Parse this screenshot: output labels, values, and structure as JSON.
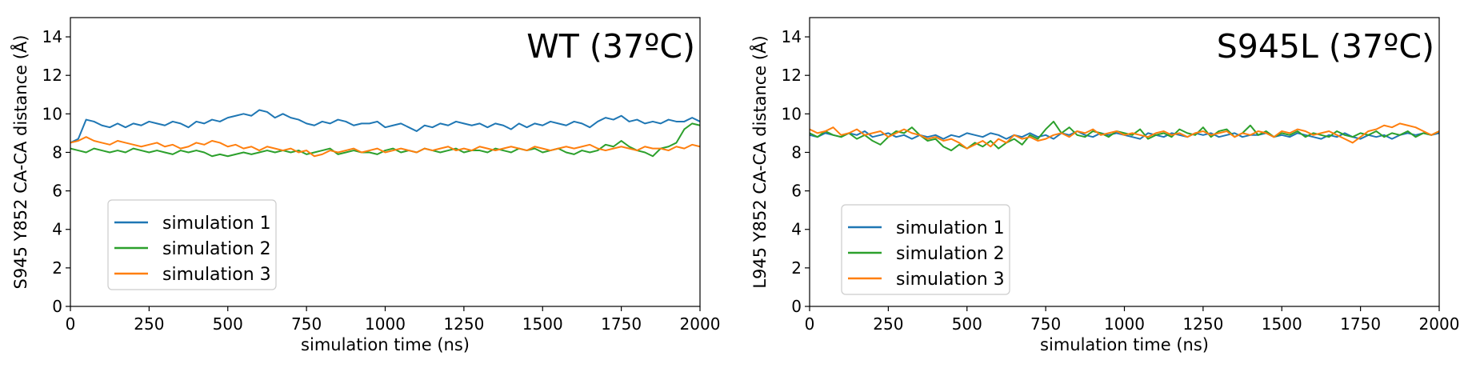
{
  "chart_data": [
    {
      "type": "line",
      "title": "WT (37ºC)",
      "xlabel": "simulation time (ns)",
      "ylabel": "S945 Y852 CA-CA distance (Å)",
      "xlim": [
        0,
        2000
      ],
      "ylim": [
        0,
        15
      ],
      "x_ticks": [
        "0",
        "250",
        "500",
        "750",
        "1000",
        "1250",
        "1500",
        "1750",
        "2000"
      ],
      "y_ticks": [
        "0",
        "2",
        "4",
        "6",
        "8",
        "10",
        "12",
        "14"
      ],
      "grid": false,
      "legend_position": "lower-left",
      "series": [
        {
          "name": "simulation 1",
          "color": "#1f77b4",
          "x": [
            0,
            25,
            50,
            75,
            100,
            125,
            150,
            175,
            200,
            225,
            250,
            275,
            300,
            325,
            350,
            375,
            400,
            425,
            450,
            475,
            500,
            525,
            550,
            575,
            600,
            625,
            650,
            675,
            700,
            725,
            750,
            775,
            800,
            825,
            850,
            875,
            900,
            925,
            950,
            975,
            1000,
            1025,
            1050,
            1075,
            1100,
            1125,
            1150,
            1175,
            1200,
            1225,
            1250,
            1275,
            1300,
            1325,
            1350,
            1375,
            1400,
            1425,
            1450,
            1475,
            1500,
            1525,
            1550,
            1575,
            1600,
            1625,
            1650,
            1675,
            1700,
            1725,
            1750,
            1775,
            1800,
            1825,
            1850,
            1875,
            1900,
            1925,
            1950,
            1975,
            2000
          ],
          "values": [
            8.5,
            8.7,
            9.7,
            9.6,
            9.4,
            9.3,
            9.5,
            9.3,
            9.5,
            9.4,
            9.6,
            9.5,
            9.4,
            9.6,
            9.5,
            9.3,
            9.6,
            9.5,
            9.7,
            9.6,
            9.8,
            9.9,
            10.0,
            9.9,
            10.2,
            10.1,
            9.8,
            10.0,
            9.8,
            9.7,
            9.5,
            9.4,
            9.6,
            9.5,
            9.7,
            9.6,
            9.4,
            9.5,
            9.5,
            9.6,
            9.3,
            9.4,
            9.5,
            9.3,
            9.1,
            9.4,
            9.3,
            9.5,
            9.4,
            9.6,
            9.5,
            9.4,
            9.5,
            9.3,
            9.5,
            9.4,
            9.2,
            9.5,
            9.3,
            9.5,
            9.4,
            9.6,
            9.5,
            9.4,
            9.6,
            9.5,
            9.3,
            9.6,
            9.8,
            9.7,
            9.9,
            9.6,
            9.7,
            9.5,
            9.6,
            9.5,
            9.7,
            9.6,
            9.6,
            9.8,
            9.6
          ]
        },
        {
          "name": "simulation 2",
          "color": "#2ca02c",
          "x": [
            0,
            25,
            50,
            75,
            100,
            125,
            150,
            175,
            200,
            225,
            250,
            275,
            300,
            325,
            350,
            375,
            400,
            425,
            450,
            475,
            500,
            525,
            550,
            575,
            600,
            625,
            650,
            675,
            700,
            725,
            750,
            775,
            800,
            825,
            850,
            875,
            900,
            925,
            950,
            975,
            1000,
            1025,
            1050,
            1075,
            1100,
            1125,
            1150,
            1175,
            1200,
            1225,
            1250,
            1275,
            1300,
            1325,
            1350,
            1375,
            1400,
            1425,
            1450,
            1475,
            1500,
            1525,
            1550,
            1575,
            1600,
            1625,
            1650,
            1675,
            1700,
            1725,
            1750,
            1775,
            1800,
            1825,
            1850,
            1875,
            1900,
            1925,
            1950,
            1975,
            2000
          ],
          "values": [
            8.2,
            8.1,
            8.0,
            8.2,
            8.1,
            8.0,
            8.1,
            8.0,
            8.2,
            8.1,
            8.0,
            8.1,
            8.0,
            7.9,
            8.1,
            8.0,
            8.1,
            8.0,
            7.8,
            7.9,
            7.8,
            7.9,
            8.0,
            7.9,
            8.0,
            8.1,
            8.0,
            8.1,
            8.0,
            8.1,
            7.9,
            8.0,
            8.1,
            8.2,
            7.9,
            8.0,
            8.1,
            8.0,
            8.0,
            7.9,
            8.1,
            8.2,
            8.0,
            8.1,
            8.0,
            8.2,
            8.1,
            8.0,
            8.1,
            8.2,
            8.0,
            8.1,
            8.1,
            8.0,
            8.2,
            8.1,
            8.0,
            8.2,
            8.1,
            8.2,
            8.0,
            8.1,
            8.2,
            8.0,
            7.9,
            8.1,
            8.0,
            8.1,
            8.4,
            8.3,
            8.6,
            8.3,
            8.1,
            8.0,
            7.8,
            8.2,
            8.3,
            8.5,
            9.2,
            9.5,
            9.4
          ]
        },
        {
          "name": "simulation 3",
          "color": "#ff7f0e",
          "x": [
            0,
            25,
            50,
            75,
            100,
            125,
            150,
            175,
            200,
            225,
            250,
            275,
            300,
            325,
            350,
            375,
            400,
            425,
            450,
            475,
            500,
            525,
            550,
            575,
            600,
            625,
            650,
            675,
            700,
            725,
            750,
            775,
            800,
            825,
            850,
            875,
            900,
            925,
            950,
            975,
            1000,
            1025,
            1050,
            1075,
            1100,
            1125,
            1150,
            1175,
            1200,
            1225,
            1250,
            1275,
            1300,
            1325,
            1350,
            1375,
            1400,
            1425,
            1450,
            1475,
            1500,
            1525,
            1550,
            1575,
            1600,
            1625,
            1650,
            1675,
            1700,
            1725,
            1750,
            1775,
            1800,
            1825,
            1850,
            1875,
            1900,
            1925,
            1950,
            1975,
            2000
          ],
          "values": [
            8.5,
            8.6,
            8.8,
            8.6,
            8.5,
            8.4,
            8.6,
            8.5,
            8.4,
            8.3,
            8.4,
            8.5,
            8.3,
            8.4,
            8.2,
            8.3,
            8.5,
            8.4,
            8.6,
            8.5,
            8.3,
            8.4,
            8.2,
            8.3,
            8.1,
            8.3,
            8.2,
            8.1,
            8.2,
            8.0,
            8.1,
            7.8,
            7.9,
            8.1,
            8.0,
            8.1,
            8.2,
            8.0,
            8.1,
            8.2,
            8.0,
            8.1,
            8.2,
            8.1,
            8.0,
            8.2,
            8.1,
            8.2,
            8.3,
            8.1,
            8.2,
            8.1,
            8.3,
            8.2,
            8.1,
            8.2,
            8.3,
            8.2,
            8.1,
            8.3,
            8.2,
            8.1,
            8.2,
            8.3,
            8.2,
            8.3,
            8.4,
            8.2,
            8.1,
            8.2,
            8.3,
            8.2,
            8.1,
            8.3,
            8.2,
            8.2,
            8.1,
            8.3,
            8.2,
            8.4,
            8.3
          ]
        }
      ]
    },
    {
      "type": "line",
      "title": "S945L (37ºC)",
      "xlabel": "simulation time (ns)",
      "ylabel": "L945 Y852 CA-CA distance (Å)",
      "xlim": [
        0,
        2000
      ],
      "ylim": [
        0,
        15
      ],
      "x_ticks": [
        "0",
        "250",
        "500",
        "750",
        "1000",
        "1250",
        "1500",
        "1750",
        "2000"
      ],
      "y_ticks": [
        "0",
        "2",
        "4",
        "6",
        "8",
        "10",
        "12",
        "14"
      ],
      "grid": false,
      "legend_position": "lower-left",
      "series": [
        {
          "name": "simulation 1",
          "color": "#1f77b4",
          "x": [
            0,
            25,
            50,
            75,
            100,
            125,
            150,
            175,
            200,
            225,
            250,
            275,
            300,
            325,
            350,
            375,
            400,
            425,
            450,
            475,
            500,
            525,
            550,
            575,
            600,
            625,
            650,
            675,
            700,
            725,
            750,
            775,
            800,
            825,
            850,
            875,
            900,
            925,
            950,
            975,
            1000,
            1025,
            1050,
            1075,
            1100,
            1125,
            1150,
            1175,
            1200,
            1225,
            1250,
            1275,
            1300,
            1325,
            1350,
            1375,
            1400,
            1425,
            1450,
            1475,
            1500,
            1525,
            1550,
            1575,
            1600,
            1625,
            1650,
            1675,
            1700,
            1725,
            1750,
            1775,
            1800,
            1825,
            1850,
            1875,
            1900,
            1925,
            1950,
            1975,
            2000
          ],
          "values": [
            8.9,
            8.8,
            9.0,
            8.9,
            8.8,
            9.0,
            8.9,
            9.1,
            8.8,
            8.9,
            9.0,
            8.8,
            8.9,
            8.7,
            8.9,
            8.8,
            8.9,
            8.7,
            8.9,
            8.8,
            9.0,
            8.9,
            8.8,
            9.0,
            8.9,
            8.7,
            8.9,
            8.8,
            9.0,
            8.8,
            8.9,
            8.7,
            9.0,
            8.9,
            9.1,
            8.9,
            8.8,
            9.0,
            8.9,
            9.0,
            8.9,
            8.8,
            8.7,
            9.0,
            8.9,
            8.8,
            9.0,
            8.9,
            8.8,
            9.0,
            8.9,
            9.0,
            8.8,
            8.9,
            9.0,
            8.8,
            8.9,
            8.9,
            9.0,
            8.8,
            8.9,
            8.8,
            9.0,
            8.9,
            8.8,
            8.7,
            8.9,
            8.8,
            9.0,
            8.8,
            8.7,
            8.9,
            8.8,
            8.9,
            8.7,
            8.9,
            9.0,
            8.9,
            9.0,
            8.9,
            9.0
          ]
        },
        {
          "name": "simulation 2",
          "color": "#2ca02c",
          "x": [
            0,
            25,
            50,
            75,
            100,
            125,
            150,
            175,
            200,
            225,
            250,
            275,
            300,
            325,
            350,
            375,
            400,
            425,
            450,
            475,
            500,
            525,
            550,
            575,
            600,
            625,
            650,
            675,
            700,
            725,
            750,
            775,
            800,
            825,
            850,
            875,
            900,
            925,
            950,
            975,
            1000,
            1025,
            1050,
            1075,
            1100,
            1125,
            1150,
            1175,
            1200,
            1225,
            1250,
            1275,
            1300,
            1325,
            1350,
            1375,
            1400,
            1425,
            1450,
            1475,
            1500,
            1525,
            1550,
            1575,
            1600,
            1625,
            1650,
            1675,
            1700,
            1725,
            1750,
            1775,
            1800,
            1825,
            1850,
            1875,
            1900,
            1925,
            1950,
            1975,
            2000
          ],
          "values": [
            9.0,
            8.8,
            9.1,
            8.9,
            8.8,
            9.0,
            8.7,
            8.9,
            8.6,
            8.4,
            8.8,
            9.1,
            9.0,
            9.3,
            8.9,
            8.6,
            8.7,
            8.3,
            8.1,
            8.4,
            8.2,
            8.5,
            8.3,
            8.6,
            8.2,
            8.5,
            8.7,
            8.4,
            8.9,
            8.7,
            9.2,
            9.6,
            9.0,
            9.3,
            8.9,
            8.8,
            9.1,
            9.0,
            8.8,
            9.1,
            9.0,
            8.9,
            9.2,
            8.7,
            8.9,
            9.0,
            8.8,
            9.2,
            9.0,
            8.9,
            9.3,
            8.8,
            9.1,
            9.2,
            8.8,
            9.0,
            9.4,
            8.9,
            9.1,
            8.8,
            9.0,
            8.9,
            9.1,
            8.8,
            9.0,
            8.9,
            8.8,
            9.1,
            8.9,
            8.8,
            9.0,
            8.9,
            9.1,
            8.8,
            9.0,
            8.9,
            9.1,
            8.8,
            9.0,
            8.9,
            9.1
          ]
        },
        {
          "name": "simulation 3",
          "color": "#ff7f0e",
          "x": [
            0,
            25,
            50,
            75,
            100,
            125,
            150,
            175,
            200,
            225,
            250,
            275,
            300,
            325,
            350,
            375,
            400,
            425,
            450,
            475,
            500,
            525,
            550,
            575,
            600,
            625,
            650,
            675,
            700,
            725,
            750,
            775,
            800,
            825,
            850,
            875,
            900,
            925,
            950,
            975,
            1000,
            1025,
            1050,
            1075,
            1100,
            1125,
            1150,
            1175,
            1200,
            1225,
            1250,
            1275,
            1300,
            1325,
            1350,
            1375,
            1400,
            1425,
            1450,
            1475,
            1500,
            1525,
            1550,
            1575,
            1600,
            1625,
            1650,
            1675,
            1700,
            1725,
            1750,
            1775,
            1800,
            1825,
            1850,
            1875,
            1900,
            1925,
            1950,
            1975,
            2000
          ],
          "values": [
            9.2,
            9.0,
            9.1,
            9.3,
            8.9,
            9.0,
            9.2,
            8.9,
            9.0,
            9.1,
            8.8,
            9.0,
            9.2,
            9.0,
            8.9,
            8.7,
            8.8,
            8.6,
            8.7,
            8.5,
            8.2,
            8.4,
            8.6,
            8.3,
            8.7,
            8.5,
            8.9,
            8.7,
            8.8,
            8.6,
            8.7,
            8.9,
            9.0,
            8.8,
            9.1,
            9.0,
            9.2,
            8.9,
            9.0,
            9.1,
            8.9,
            9.0,
            8.9,
            8.8,
            9.0,
            9.1,
            8.9,
            9.0,
            8.8,
            9.0,
            9.1,
            8.9,
            9.0,
            9.1,
            8.8,
            9.0,
            8.9,
            9.1,
            9.0,
            8.8,
            9.1,
            9.0,
            9.2,
            9.1,
            8.9,
            9.0,
            9.1,
            8.9,
            8.7,
            8.5,
            8.8,
            9.1,
            9.2,
            9.4,
            9.3,
            9.5,
            9.4,
            9.3,
            9.1,
            8.9,
            9.1
          ]
        }
      ]
    }
  ]
}
